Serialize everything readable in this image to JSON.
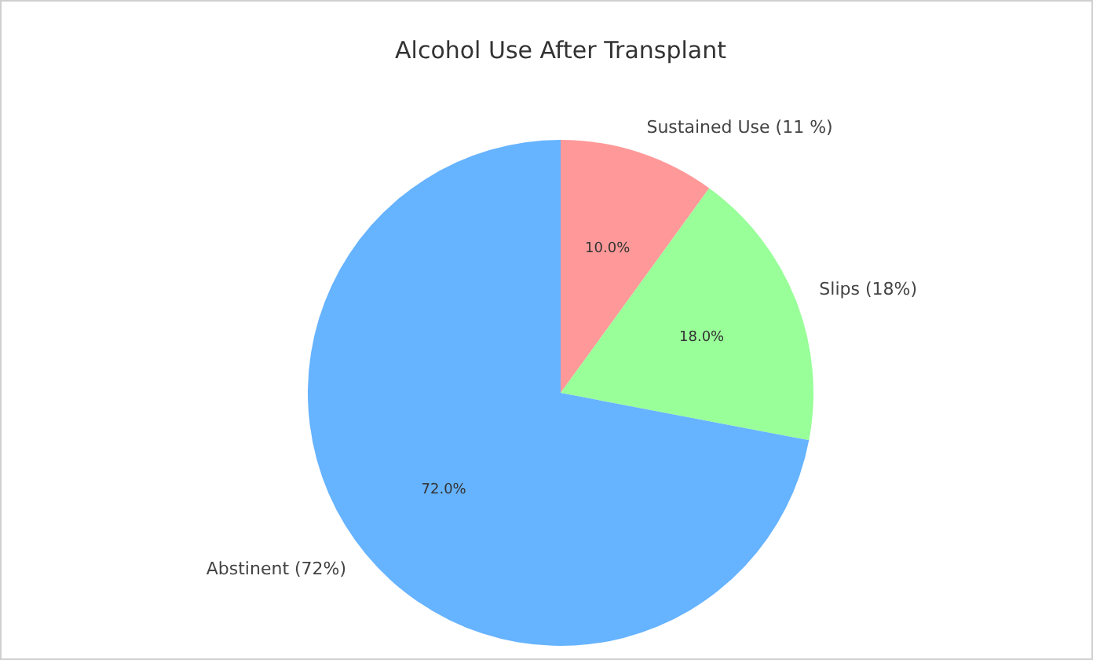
{
  "chart_data": {
    "type": "pie",
    "title": "Alcohol Use After Transplant",
    "categories": [
      "Abstinent (72%)",
      "Slips (18%)",
      "Sustained Use (11 %)"
    ],
    "values": [
      72,
      18,
      10
    ],
    "colors": [
      "#66b3ff",
      "#99ff99",
      "#ff9999"
    ],
    "value_labels": [
      "72.0%",
      "18.0%",
      "10.0%"
    ],
    "legend": false
  }
}
